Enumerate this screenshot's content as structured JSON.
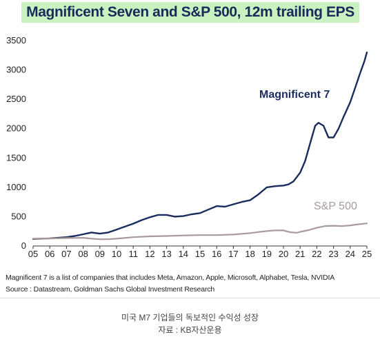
{
  "chart_data": {
    "type": "line",
    "title": "Magnificent Seven and S&P 500, 12m trailing EPS",
    "xlabel": "",
    "ylabel": "",
    "xlim": [
      2005,
      2025
    ],
    "ylim": [
      0,
      3500
    ],
    "x_ticks": [
      "05",
      "06",
      "07",
      "08",
      "09",
      "10",
      "11",
      "12",
      "13",
      "14",
      "15",
      "16",
      "17",
      "18",
      "19",
      "20",
      "21",
      "22",
      "23",
      "24",
      "25"
    ],
    "y_ticks": [
      "0",
      "500",
      "1000",
      "1500",
      "2000",
      "2500",
      "3000",
      "3500"
    ],
    "grid": false,
    "series": [
      {
        "name": "Magnificent 7",
        "color": "#1a2b5e",
        "x": [
          2005.0,
          2006.0,
          2007.0,
          2007.5,
          2008.0,
          2008.5,
          2009.0,
          2009.5,
          2010.0,
          2010.5,
          2011.0,
          2011.5,
          2012.0,
          2012.5,
          2013.0,
          2013.5,
          2014.0,
          2014.5,
          2015.0,
          2015.5,
          2016.0,
          2016.5,
          2017.0,
          2017.5,
          2018.0,
          2018.5,
          2019.0,
          2019.5,
          2020.0,
          2020.3,
          2020.6,
          2021.0,
          2021.3,
          2021.6,
          2021.9,
          2022.1,
          2022.4,
          2022.7,
          2023.0,
          2023.3,
          2023.6,
          2024.0,
          2024.3,
          2024.6,
          2024.85,
          2025.0
        ],
        "values": [
          120,
          130,
          150,
          170,
          200,
          230,
          210,
          230,
          280,
          330,
          380,
          440,
          490,
          530,
          530,
          500,
          510,
          540,
          560,
          620,
          680,
          670,
          710,
          750,
          780,
          880,
          1000,
          1020,
          1030,
          1050,
          1100,
          1250,
          1450,
          1750,
          2050,
          2100,
          2050,
          1850,
          1850,
          2000,
          2200,
          2450,
          2700,
          2950,
          3150,
          3300
        ]
      },
      {
        "name": "S&P 500",
        "color": "#a89a98",
        "x": [
          2005.0,
          2006.0,
          2007.0,
          2008.0,
          2008.5,
          2009.0,
          2009.5,
          2010.0,
          2011.0,
          2012.0,
          2013.0,
          2014.0,
          2015.0,
          2016.0,
          2017.0,
          2018.0,
          2019.0,
          2019.5,
          2020.0,
          2020.4,
          2020.8,
          2021.0,
          2021.5,
          2022.0,
          2022.5,
          2023.0,
          2023.5,
          2024.0,
          2024.5,
          2025.0
        ],
        "values": [
          125,
          128,
          135,
          140,
          125,
          115,
          115,
          125,
          150,
          165,
          170,
          180,
          185,
          185,
          195,
          220,
          255,
          265,
          265,
          235,
          225,
          240,
          270,
          310,
          340,
          345,
          340,
          350,
          370,
          385
        ]
      }
    ],
    "annotations": [
      {
        "text": "Magnificent 7",
        "series": "Magnificent 7"
      },
      {
        "text": "S&P 500",
        "series": "S&P 500"
      }
    ]
  },
  "notes": {
    "members": "Magnificent 7 is a list of companies that includes Meta, Amazon, Apple, Microsoft, Alphabet, Tesla, NVIDIA",
    "source": "Source : Datastream, Goldman Sachs Global Investment Research"
  },
  "captions": {
    "line1": "미국 M7 기업들의 독보적인 수익성 성장",
    "line2": "자료 : KB자산운용"
  }
}
